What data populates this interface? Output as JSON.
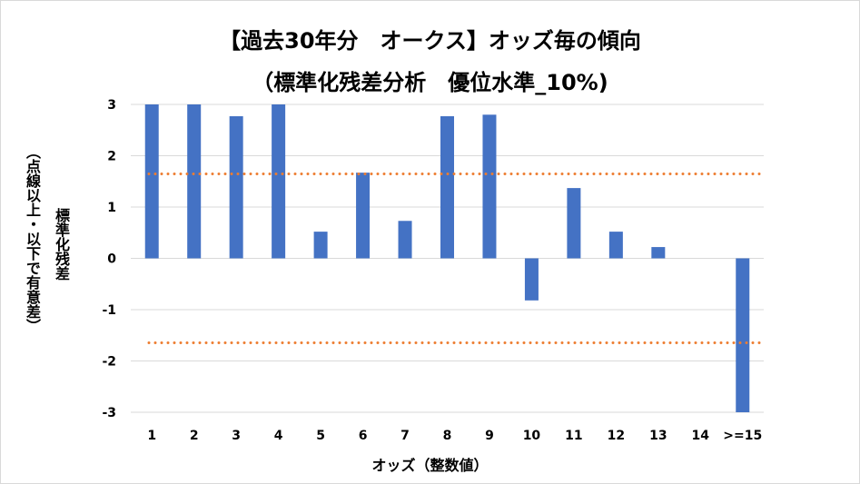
{
  "chart_data": {
    "type": "bar",
    "title": "【過去30年分　オークス】オッズ毎の傾向",
    "subtitle": "（標準化残差分析　優位水準_10%)",
    "xlabel": "オッズ（整数値）",
    "ylabel": "標準化残差",
    "ylabel_note": "（点線以上・以下で有意差）",
    "categories": [
      "1",
      "2",
      "3",
      "4",
      "5",
      "6",
      "7",
      "8",
      "9",
      "10",
      "11",
      "12",
      "13",
      "14",
      ">=15"
    ],
    "values": [
      3.0,
      3.0,
      2.77,
      3.0,
      0.52,
      1.67,
      0.73,
      2.77,
      2.8,
      -0.82,
      1.37,
      0.52,
      0.22,
      0,
      -3.0
    ],
    "ylim": [
      -3,
      3
    ],
    "yticks": [
      "3",
      "2",
      "1",
      "0",
      "-1",
      "-2",
      "-3"
    ],
    "thresholds": [
      1.645,
      -1.645
    ],
    "grid": true,
    "legend": "none",
    "colors": {
      "bar": "#4472c4",
      "threshold": "#ed7d31",
      "grid": "#d9d9d9",
      "frame": "#d9d9d9"
    }
  }
}
